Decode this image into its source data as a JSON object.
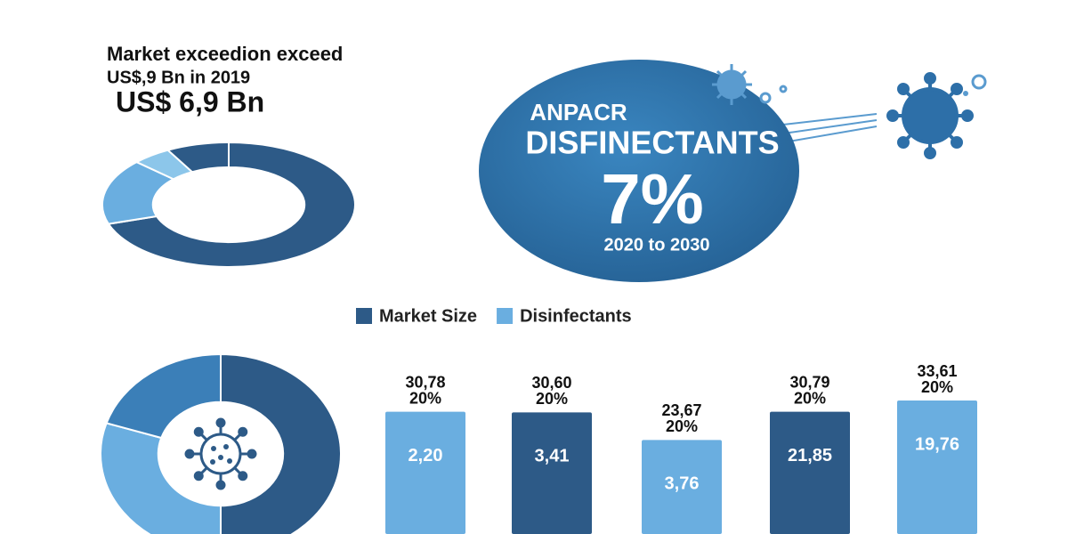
{
  "headline": {
    "line1": "Market exceedion exceed",
    "line2": "US$,9 Bn in 2019",
    "amount": "US$ 6,9 Bn"
  },
  "badge": {
    "name": "ANPACR",
    "product": "DISFINECTANTS",
    "rate": "7%",
    "period": "2020 to 2030"
  },
  "chart_data": [
    {
      "type": "pie",
      "values": [
        70,
        17,
        5,
        8
      ],
      "colors": [
        "#2d5a87",
        "#6aaee0",
        "#8cc6ea",
        "#2d5a87"
      ]
    },
    {
      "type": "pie",
      "values": [
        50,
        30,
        20
      ],
      "colors": [
        "#2d5a87",
        "#6aaee0",
        "#3b7fb8"
      ]
    },
    {
      "type": "bar",
      "categories": [
        null,
        null,
        null,
        null,
        null
      ],
      "legend": "top",
      "series": [
        {
          "name": "Market Size",
          "color": "#2d5a87",
          "values": [
            null,
            30.6,
            null,
            30.79,
            null
          ],
          "value_labels": [
            null,
            "30,60",
            null,
            "30,79",
            null
          ],
          "shares": [
            null,
            20,
            null,
            20,
            null
          ],
          "share_labels": [
            null,
            "20%",
            null,
            "20%",
            null
          ],
          "inner": [
            null,
            3.41,
            null,
            21.85,
            null
          ],
          "inner_labels": [
            null,
            "3,41",
            null,
            "21,85",
            null
          ]
        },
        {
          "name": "Disinfectants",
          "color": "#6aaee0",
          "values": [
            30.78,
            null,
            23.67,
            null,
            33.61
          ],
          "value_labels": [
            "30,78",
            null,
            "23,67",
            null,
            "33,61"
          ],
          "shares": [
            20,
            null,
            20,
            null,
            20
          ],
          "share_labels": [
            "20%",
            null,
            "20%",
            null,
            "20%"
          ],
          "inner": [
            2.2,
            null,
            3.76,
            null,
            19.76
          ],
          "inner_labels": [
            "2,20",
            null,
            "3,76",
            null,
            "19,76"
          ]
        }
      ]
    }
  ]
}
